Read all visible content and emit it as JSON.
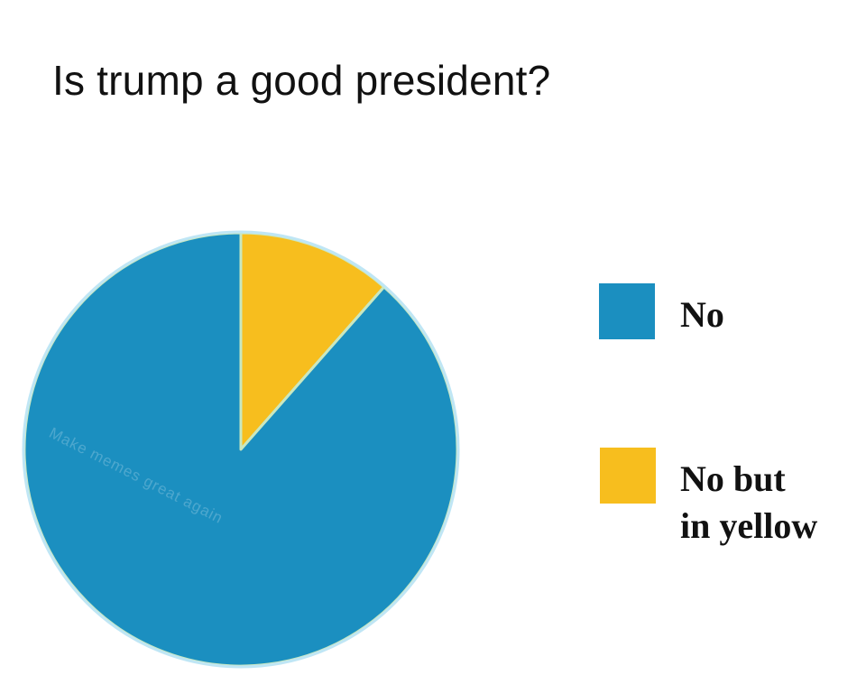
{
  "chart_data": {
    "type": "pie",
    "title": "Is trump a good president?",
    "slices": [
      {
        "label": "No",
        "value": 88.5,
        "color": "#1B8FC0"
      },
      {
        "label": "No but in yellow",
        "value": 11.5,
        "color": "#F7BE1E"
      }
    ],
    "legend": {
      "placement": "right",
      "entries": [
        {
          "lines": [
            "No"
          ],
          "color": "#1B8FC0"
        },
        {
          "lines": [
            "No but",
            "in yellow"
          ],
          "color": "#F7BE1E"
        }
      ]
    },
    "watermark": "Make memes great again"
  }
}
